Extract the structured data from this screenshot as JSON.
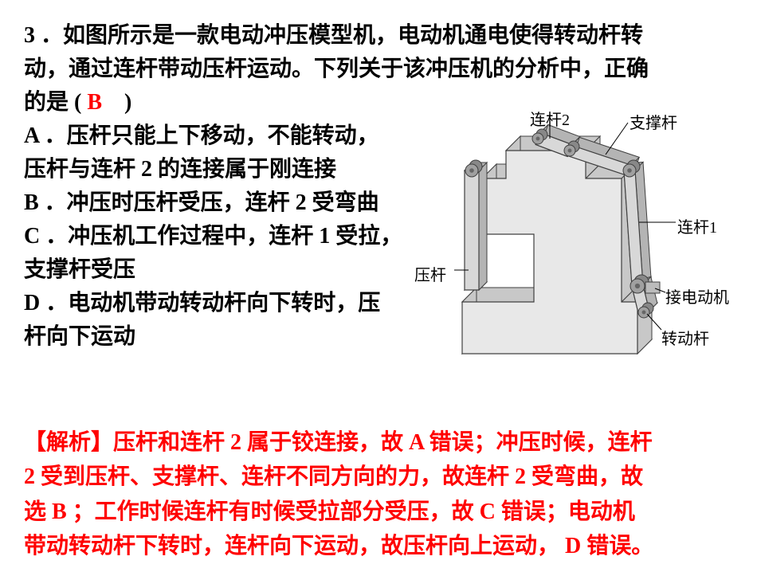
{
  "question": {
    "number": "3",
    "stem_line1": "3 ．如图所示是一款电动冲压模型机，电动机通电使得转动杆转",
    "stem_line2": "动，通过连杆带动压杆运动。下列关于该冲压机的分析中，正确",
    "stem_line3_prefix": "的是 (",
    "stem_line3_suffix": "　)",
    "answer": " B",
    "options": {
      "A1": "A ．压杆只能上下移动，不能转动，",
      "A2": "压杆与连杆 2 的连接属于刚连接",
      "B": "B ．冲压时压杆受压，连杆 2 受弯曲",
      "C1": "C ．冲压机工作过程中，连杆 1 受拉，",
      "C2": "支撑杆受压",
      "D1": "D ．电动机带动转动杆向下转时，压",
      "D2": "杆向下运动"
    }
  },
  "labels": {
    "liangan2": "连杆2",
    "zhichenggan": "支撑杆",
    "liangan1": "连杆1",
    "yagan": "压杆",
    "jiediandongji": "接电动机",
    "zhuandonggan": "转动杆"
  },
  "analysis_lines": {
    "l1": "【解析】压杆和连杆 2 属于铰连接，故 A 错误；冲压时候，连杆",
    "l2": " 2 受到压杆、支撑杆、连杆不同方向的力，故连杆 2 受弯曲，故",
    "l3": "选 B ；工作时候连杆有时候受拉部分受压，故 C 错误；电动机",
    "l4": "带动转动杆下转时，连杆向下运动，故压杆向上运动， D 错误。"
  },
  "svg": {
    "body_fill": "#c8c8c8",
    "body_stroke": "#404040",
    "face_fill": "#e8e8e8",
    "bar_fill": "#d8d8d8",
    "joint_fill": "#a0a0a0",
    "depth": 18
  }
}
